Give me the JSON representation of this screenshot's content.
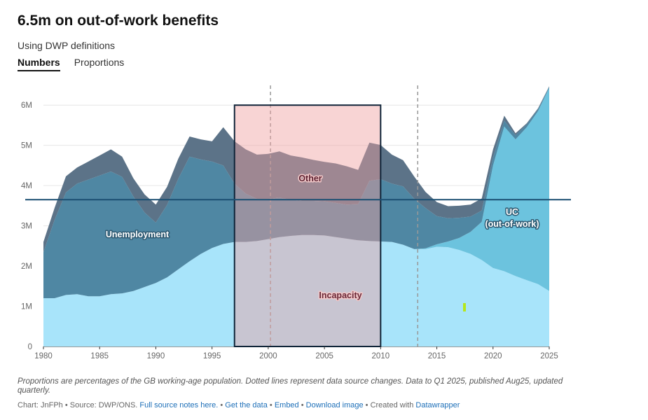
{
  "header": {
    "title": "6.5m on out-of-work benefits",
    "subtitle": "Using DWP definitions",
    "tabs": [
      {
        "label": "Numbers",
        "active": true
      },
      {
        "label": "Proportions",
        "active": false
      }
    ]
  },
  "chart_data": {
    "type": "area",
    "stacked": true,
    "x": [
      1980,
      1981,
      1982,
      1983,
      1984,
      1985,
      1986,
      1987,
      1988,
      1989,
      1990,
      1991,
      1992,
      1993,
      1994,
      1995,
      1996,
      1997,
      1998,
      1999,
      2000,
      2001,
      2002,
      2003,
      2004,
      2005,
      2006,
      2007,
      2008,
      2009,
      2010,
      2011,
      2012,
      2013,
      2014,
      2015,
      2016,
      2017,
      2018,
      2019,
      2020,
      2021,
      2022,
      2023,
      2024,
      2025
    ],
    "series": [
      {
        "name": "Incapacity",
        "color": "#a8e4fa",
        "values": [
          1.2,
          1.2,
          1.28,
          1.3,
          1.25,
          1.25,
          1.3,
          1.32,
          1.38,
          1.48,
          1.58,
          1.72,
          1.92,
          2.12,
          2.3,
          2.45,
          2.55,
          2.6,
          2.6,
          2.62,
          2.67,
          2.72,
          2.75,
          2.77,
          2.77,
          2.76,
          2.72,
          2.68,
          2.64,
          2.62,
          2.61,
          2.6,
          2.53,
          2.42,
          2.42,
          2.48,
          2.47,
          2.4,
          2.3,
          2.15,
          1.95,
          1.87,
          1.75,
          1.65,
          1.55,
          1.38
        ]
      },
      {
        "name": "UC\n(out-of-work)",
        "color": "#6cc3de",
        "values": [
          0,
          0,
          0,
          0,
          0,
          0,
          0,
          0,
          0,
          0,
          0,
          0,
          0,
          0,
          0,
          0,
          0,
          0,
          0,
          0,
          0,
          0,
          0,
          0,
          0,
          0,
          0,
          0,
          0,
          0,
          0,
          0,
          0,
          0,
          0.02,
          0.06,
          0.14,
          0.3,
          0.55,
          0.95,
          2.55,
          3.6,
          3.4,
          3.8,
          4.3,
          5.05
        ]
      },
      {
        "name": "Unemployment",
        "color": "#4f87a3",
        "values": [
          1.15,
          1.95,
          2.55,
          2.75,
          2.9,
          3.0,
          3.05,
          2.9,
          2.35,
          1.85,
          1.5,
          1.8,
          2.25,
          2.6,
          2.35,
          2.15,
          1.95,
          1.45,
          1.2,
          1.05,
          1.0,
          0.98,
          0.9,
          0.85,
          0.85,
          0.85,
          0.85,
          0.85,
          0.9,
          1.5,
          1.55,
          1.45,
          1.45,
          1.25,
          1.0,
          0.7,
          0.58,
          0.5,
          0.38,
          0.28,
          0.2,
          0.15,
          0.1,
          0.07,
          0.05,
          0.03
        ]
      },
      {
        "name": "Other",
        "color": "#5c7388",
        "values": [
          0.25,
          0.3,
          0.4,
          0.4,
          0.45,
          0.5,
          0.55,
          0.5,
          0.45,
          0.45,
          0.45,
          0.45,
          0.5,
          0.5,
          0.5,
          0.5,
          0.95,
          1.05,
          1.1,
          1.1,
          1.12,
          1.15,
          1.1,
          1.08,
          1.02,
          0.98,
          0.98,
          0.95,
          0.85,
          0.95,
          0.85,
          0.72,
          0.65,
          0.55,
          0.4,
          0.35,
          0.3,
          0.3,
          0.3,
          0.3,
          0.2,
          0.12,
          0.05,
          0.03,
          0.02,
          0.01
        ]
      }
    ],
    "y_ticks": [
      0,
      1,
      2,
      3,
      4,
      5,
      6
    ],
    "y_tick_labels": [
      "0",
      "1M",
      "2M",
      "3M",
      "4M",
      "5M",
      "6M"
    ],
    "x_ticks": [
      1980,
      1985,
      1990,
      1995,
      2000,
      2005,
      2010,
      2015,
      2020,
      2025
    ],
    "xlim": [
      1980,
      2025
    ],
    "ylim": [
      0,
      6.7
    ],
    "grid": "horizontal",
    "source_change_years": [
      2000.2,
      2013.3
    ],
    "highlight_box": {
      "x_from": 1997,
      "x_to": 2010,
      "y_from": 0,
      "y_to": 6.0
    },
    "reference_line_y": 3.65,
    "labels": {
      "unemployment": "Unemployment",
      "other": "Other",
      "incapacity": "Incapacity",
      "uc": [
        "UC",
        "(out-of-work)"
      ]
    }
  },
  "footer": {
    "notes": "Proportions are percentages of the GB working-age population. Dotted lines represent data source changes. Data to Q1 2025, published Aug25, updated quarterly.",
    "chart_by": "Chart: JnFPh • Source: DWP/ONS.",
    "links": {
      "source_notes": "Full source notes here.",
      "get_data": "Get the data",
      "embed": "Embed",
      "download": "Download image",
      "created_with_prefix": "Created with",
      "datawrapper": "Datawrapper"
    },
    "separator": "•"
  }
}
